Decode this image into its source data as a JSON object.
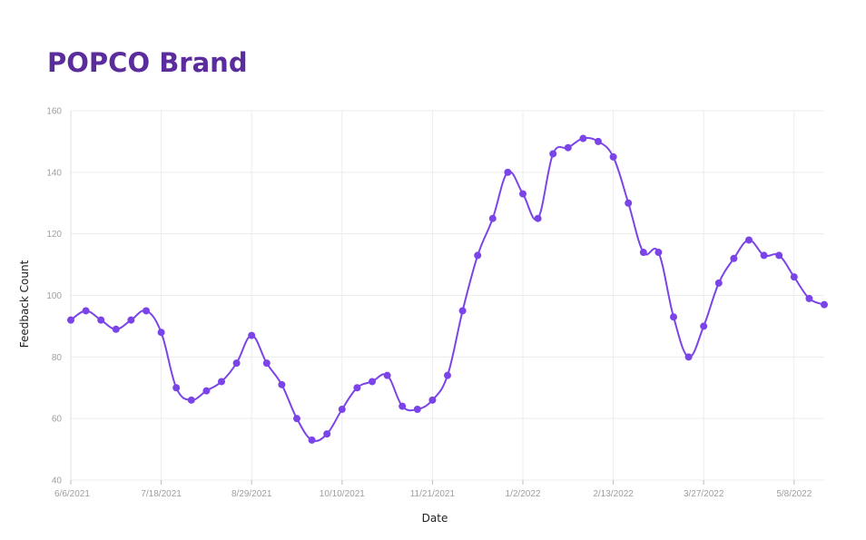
{
  "title": "POPCO Brand",
  "chart_data": {
    "type": "line",
    "xlabel": "Date",
    "ylabel": "Feedback Count",
    "ylim": [
      40,
      160
    ],
    "y_ticks": [
      "40",
      "60",
      "80",
      "100",
      "120",
      "140",
      "160"
    ],
    "x_ticks": [
      "6/6/2021",
      "7/18/2021",
      "8/29/2021",
      "10/10/2021",
      "11/21/2021",
      "1/2/2022",
      "2/13/2022",
      "3/27/2022",
      "5/8/2022"
    ],
    "grid": true,
    "color": "#7b44e8",
    "categories": [
      "6/6/2021",
      "6/13/2021",
      "6/20/2021",
      "6/27/2021",
      "7/4/2021",
      "7/11/2021",
      "7/18/2021",
      "7/25/2021",
      "8/1/2021",
      "8/8/2021",
      "8/15/2021",
      "8/22/2021",
      "8/29/2021",
      "9/5/2021",
      "9/12/2021",
      "9/19/2021",
      "9/26/2021",
      "10/3/2021",
      "10/10/2021",
      "10/17/2021",
      "10/24/2021",
      "10/31/2021",
      "11/7/2021",
      "11/14/2021",
      "11/21/2021",
      "11/28/2021",
      "12/5/2021",
      "12/12/2021",
      "12/19/2021",
      "12/26/2021",
      "1/2/2022",
      "1/9/2022",
      "1/16/2022",
      "1/23/2022",
      "1/30/2022",
      "2/6/2022",
      "2/13/2022",
      "2/20/2022",
      "2/27/2022",
      "3/6/2022",
      "3/13/2022",
      "3/20/2022",
      "3/27/2022",
      "4/3/2022",
      "4/10/2022",
      "4/17/2022",
      "4/24/2022",
      "5/1/2022",
      "5/8/2022",
      "5/15/2022",
      "5/22/2022"
    ],
    "series": [
      {
        "values": [
          92,
          95,
          92,
          89,
          92,
          95,
          88,
          70,
          66,
          69,
          72,
          78,
          87,
          78,
          71,
          60,
          53,
          55,
          63,
          70,
          72,
          74,
          64,
          63,
          66,
          74,
          95,
          113,
          125,
          140,
          133,
          125,
          146,
          148,
          151,
          150,
          145,
          130,
          114,
          114,
          93,
          80,
          90,
          104,
          112,
          118,
          113,
          113,
          106,
          99,
          97
        ]
      }
    ]
  }
}
